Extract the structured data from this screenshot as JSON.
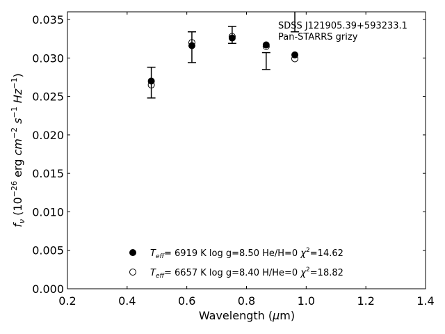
{
  "chart_data": {
    "type": "scatter",
    "title": "",
    "xlabel": "Wavelength (μm)",
    "ylabel": "f_ν (10^-26 erg cm^-2 s^-1 Hz^-1)",
    "xlim": [
      0.2,
      1.4
    ],
    "ylim": [
      0.0,
      0.036
    ],
    "x_ticks": [
      0.2,
      0.4,
      0.6,
      0.8,
      1.0,
      1.2,
      1.4
    ],
    "x_tick_labels": [
      "0.2",
      "0.4",
      "0.6",
      "0.8",
      "1.0",
      "1.2",
      "1.4"
    ],
    "y_ticks": [
      0.0,
      0.005,
      0.01,
      0.015,
      0.02,
      0.025,
      0.03,
      0.035
    ],
    "y_tick_labels": [
      "0.000",
      "0.005",
      "0.010",
      "0.015",
      "0.020",
      "0.025",
      "0.030",
      "0.035"
    ],
    "grid": false,
    "annotation": [
      "SDSS J121905.39+593233.1",
      "Pan-STARRS grizy"
    ],
    "annotation_placement": "top-right",
    "legend_placement": "bottom-center",
    "observed": {
      "x": [
        0.481,
        0.617,
        0.752,
        0.866,
        0.962
      ],
      "y": [
        0.0268,
        0.0314,
        0.033,
        0.0296,
        0.0348
      ],
      "yerr": [
        0.002,
        0.002,
        0.0011,
        0.0011,
        0.0014
      ],
      "color": "#000000"
    },
    "series": [
      {
        "name": "Teff = 6919 K  log g=8.50  He/H=0  χ2=14.62",
        "marker": "filled-circle",
        "x": [
          0.481,
          0.617,
          0.752,
          0.866,
          0.962
        ],
        "y": [
          0.027,
          0.0316,
          0.0326,
          0.0317,
          0.0304
        ]
      },
      {
        "name": "Teff = 6657 K  log g=8.40  H/He=0  χ2=18.82",
        "marker": "open-circle",
        "x": [
          0.481,
          0.617,
          0.752,
          0.866,
          0.962
        ],
        "y": [
          0.0265,
          0.032,
          0.0328,
          0.0315,
          0.0299
        ]
      }
    ],
    "legend": [
      {
        "teff": "6919 K",
        "logg": "log g=8.50",
        "comp": "He/H=0",
        "chi": "=14.62"
      },
      {
        "teff": "6657 K",
        "logg": "log g=8.40",
        "comp": "H/He=0",
        "chi": "=18.82"
      }
    ]
  }
}
